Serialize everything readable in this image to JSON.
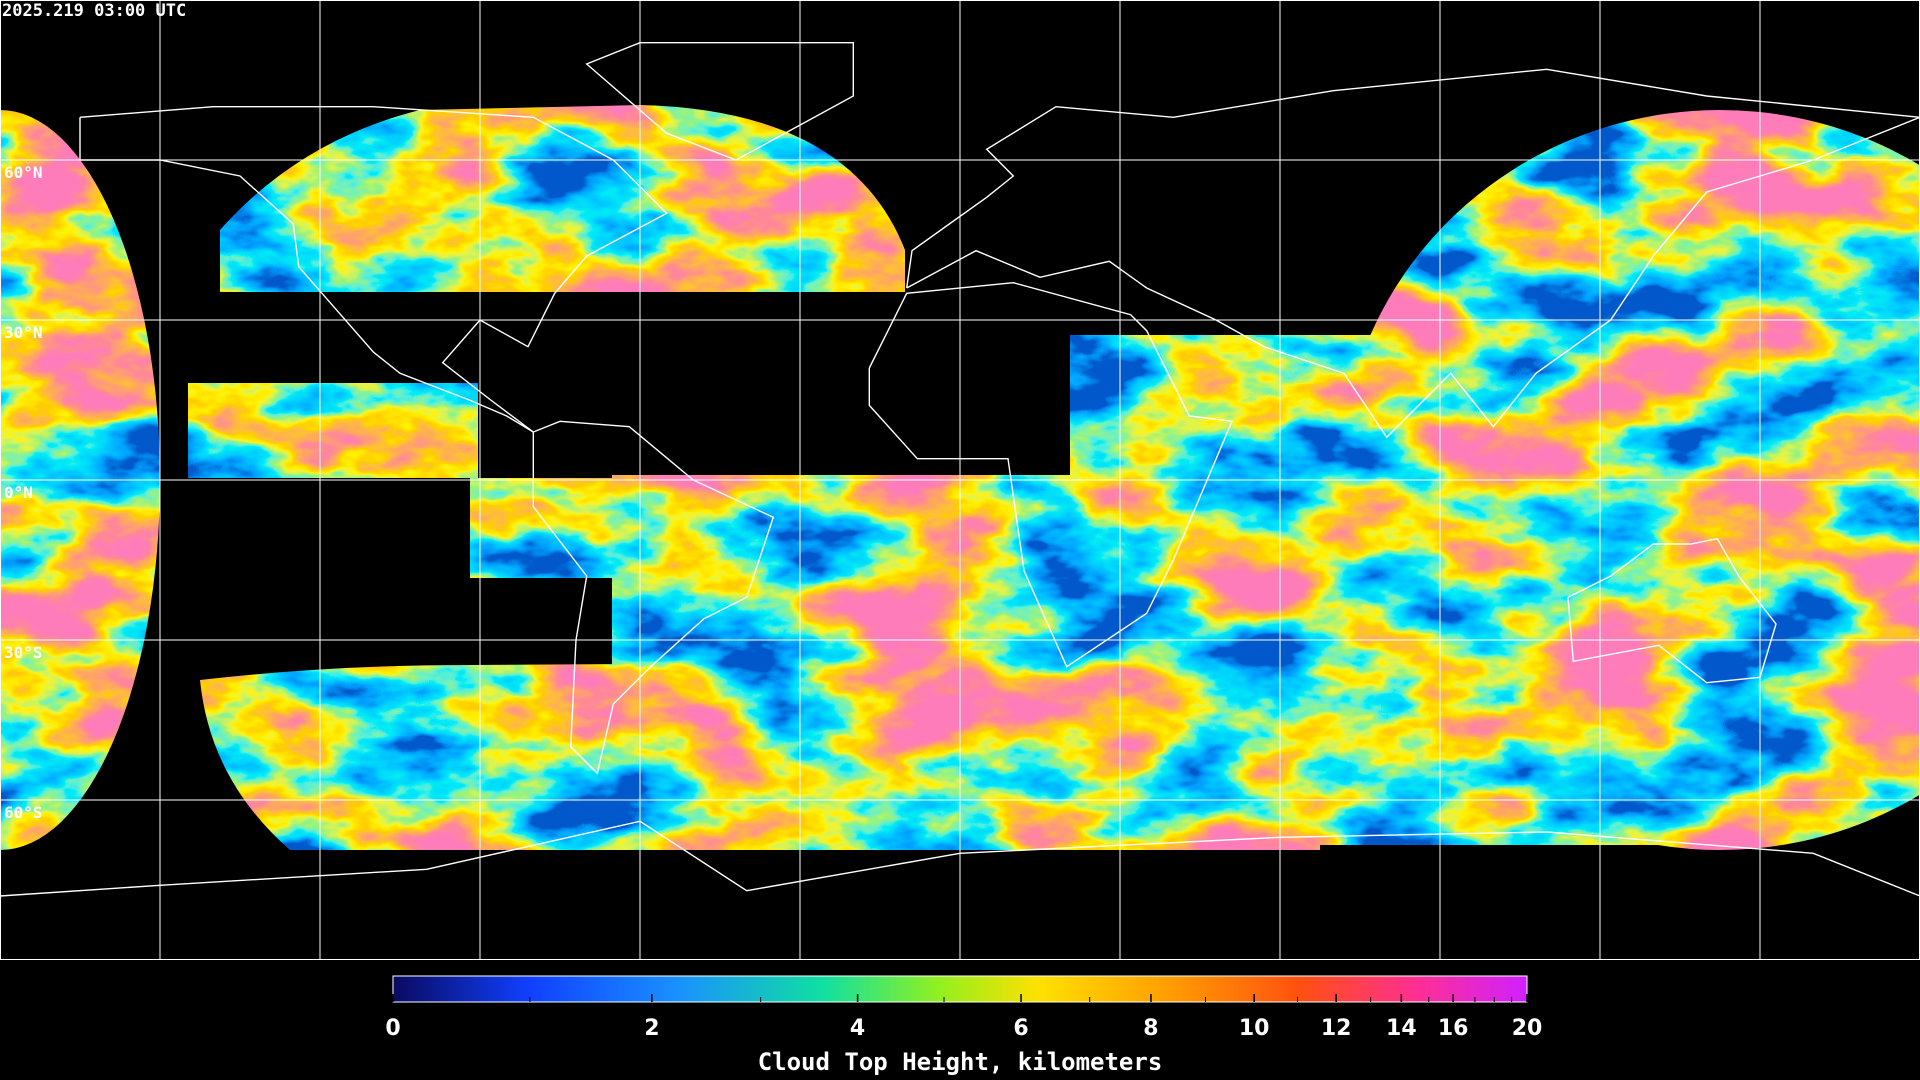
{
  "timestamp": "2025.219 03:00 UTC",
  "map": {
    "lon_range": [
      -180,
      180
    ],
    "lat_range": [
      90,
      -90
    ],
    "meridians": [
      -150,
      -120,
      -90,
      -60,
      -30,
      0,
      30,
      60,
      90,
      120,
      150
    ],
    "parallels": [
      {
        "value": 60,
        "label": "60°N"
      },
      {
        "value": 30,
        "label": "30°N"
      },
      {
        "value": 0,
        "label": "0°N"
      },
      {
        "value": -30,
        "label": "30°S"
      },
      {
        "value": -60,
        "label": "60°S"
      }
    ]
  },
  "colorbar": {
    "title": "Cloud Top Height, kilometers",
    "range": [
      0,
      20
    ],
    "ticks": [
      0,
      2,
      4,
      6,
      8,
      10,
      12,
      14,
      16,
      20
    ],
    "minor_ticks": [
      1,
      3,
      5,
      7,
      9,
      11,
      13,
      15,
      17,
      18,
      19
    ]
  }
}
